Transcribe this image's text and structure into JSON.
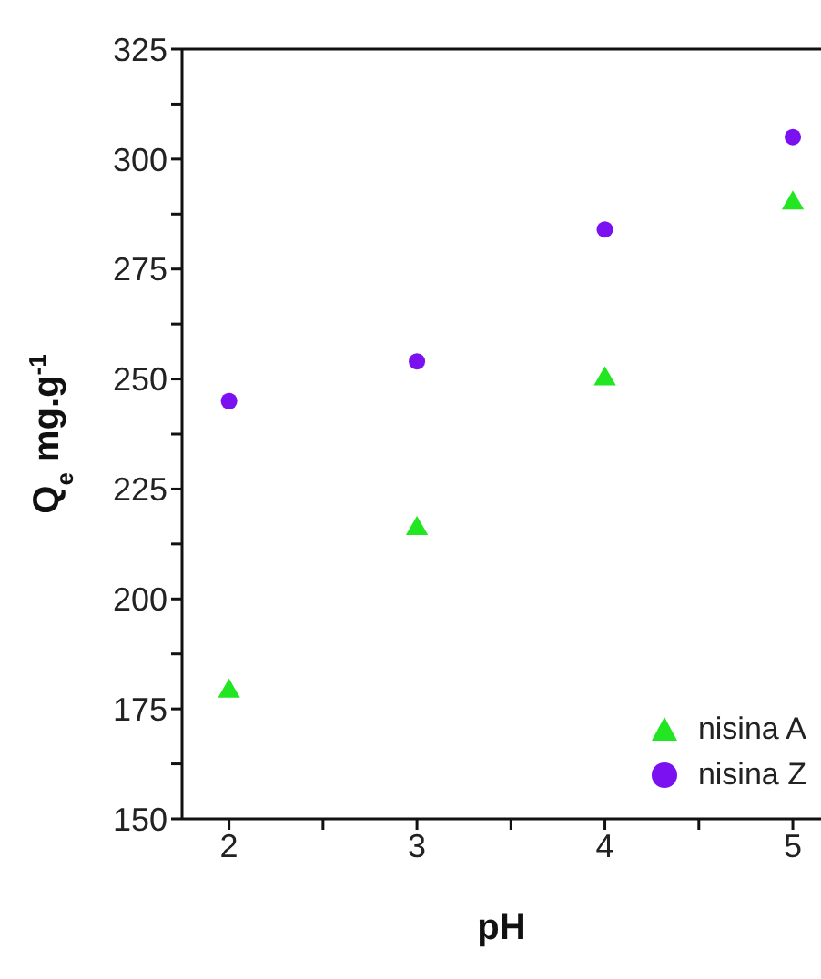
{
  "chart_data": {
    "type": "scatter",
    "xlabel": "pH",
    "ylabel": "Q$_{e}$ mg.g$^{-1}$",
    "xlim": [
      1.75,
      5.15
    ],
    "xticks": [
      2,
      {
        "value": 2.5,
        "label": null
      },
      3,
      {
        "value": 3.5,
        "label": null
      },
      4,
      {
        "value": 4.5,
        "label": null
      },
      5
    ],
    "ylim": [
      150,
      325
    ],
    "yticks": [
      150,
      {
        "value": 162.5,
        "label": null
      },
      175,
      {
        "value": 187.5,
        "label": null
      },
      200,
      {
        "value": 212.5,
        "label": null
      },
      225,
      {
        "value": 237.5,
        "label": null
      },
      250,
      {
        "value": 262.5,
        "label": null
      },
      275,
      {
        "value": 287.5,
        "label": null
      },
      300,
      {
        "value": 312.5,
        "label": null
      },
      325
    ],
    "x": [
      2,
      3,
      4,
      5
    ],
    "series": [
      {
        "name": "nisina A",
        "color": "#22e622",
        "marker": "triangle",
        "values": [
          179,
          216,
          250,
          290
        ]
      },
      {
        "name": "nisina Z",
        "color": "#7b10f0",
        "marker": "circle",
        "values": [
          245,
          254,
          284,
          305
        ]
      }
    ],
    "grid": false,
    "legend": "bottom right"
  }
}
